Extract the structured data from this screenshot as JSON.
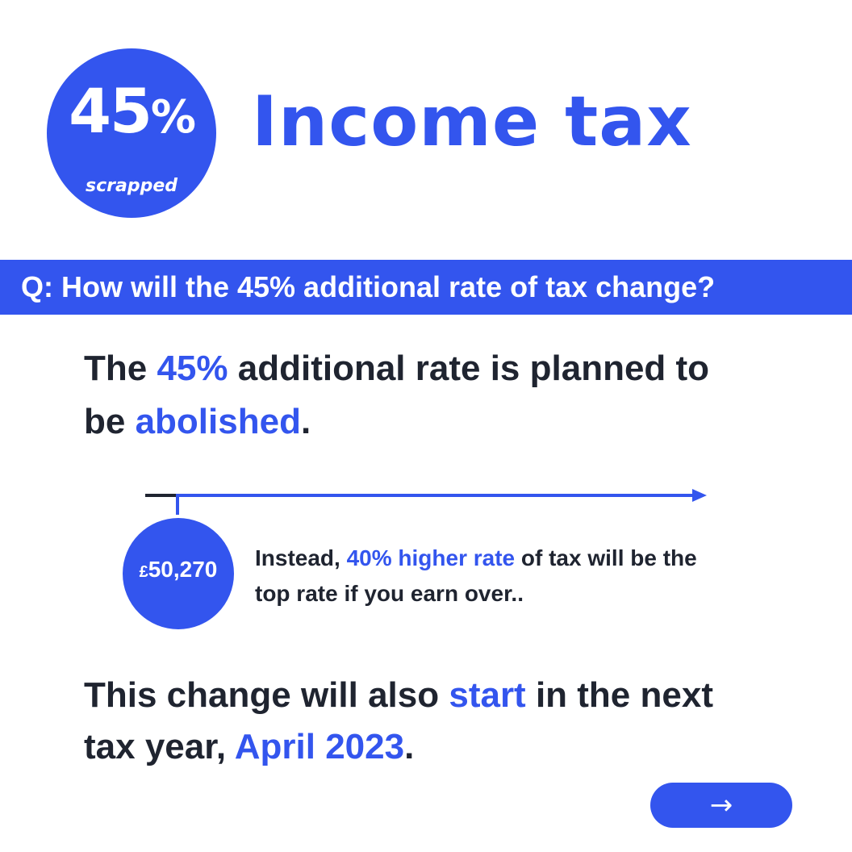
{
  "badge": {
    "number": "45",
    "percent": "%",
    "caption": "scrapped"
  },
  "title": "Income tax",
  "question": "Q: How will the 45% additional rate of tax change?",
  "para1": {
    "t1": "The ",
    "h1": "45%",
    "t2": " additional rate is planned to be ",
    "h2": "abolished",
    "t3": "."
  },
  "threshold": {
    "currency": "£",
    "value": "50,270"
  },
  "instead": {
    "t1": "Instead, ",
    "h1": "40% higher rate",
    "t2": " of tax will be the top rate if you earn over.."
  },
  "para2": {
    "t1": "This change will also ",
    "h1": "start",
    "t2": " in the next tax year, ",
    "h2": "April 2023",
    "t3": "."
  },
  "next_button": {
    "label": "→"
  },
  "colors": {
    "accent": "#3355ee",
    "text": "#1f2430"
  }
}
